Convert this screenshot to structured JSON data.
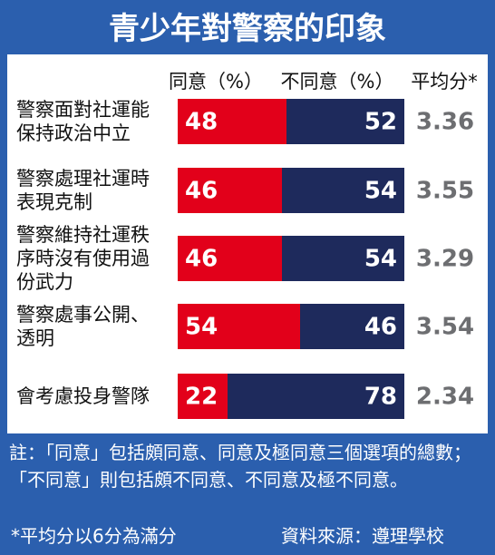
{
  "chart_data": {
    "type": "bar",
    "title": "青少年對警察的印象",
    "categories": [
      "警察面對社運能保持政治中立",
      "警察處理社運時表現克制",
      "警察維持社運秩序時沒有使用過份武力",
      "警察處事公開、透明",
      "會考慮投身警隊"
    ],
    "series": [
      {
        "name": "同意（%）",
        "color": "#e2001a",
        "values": [
          48,
          46,
          46,
          54,
          22
        ]
      },
      {
        "name": "不同意（%）",
        "color": "#1e2a5c",
        "values": [
          52,
          54,
          54,
          46,
          78
        ]
      }
    ],
    "average_label": "平均分*",
    "averages": [
      3.36,
      3.55,
      3.29,
      3.54,
      2.34
    ],
    "note": "註：「同意」包括頗同意、同意及極同意三個選項的總數；「不同意」則包括頗不同意、不同意及極不同意。",
    "footnote": "*平均分以6分為滿分",
    "source": "資料來源：遵理學校"
  }
}
